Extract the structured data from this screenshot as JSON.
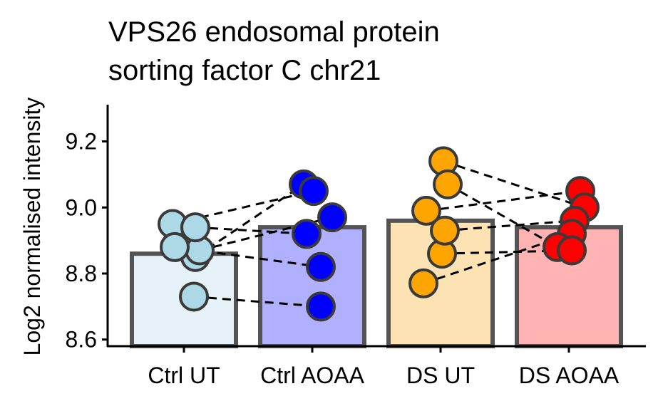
{
  "chart_data": {
    "type": "bar",
    "title_lines": [
      "VPS26 endosomal protein",
      "sorting factor C chr21"
    ],
    "xlabel": "",
    "ylabel": "Log2 normalised intensity",
    "categories": [
      "Ctrl UT",
      "Ctrl AOAA",
      "DS UT",
      "DS AOAA"
    ],
    "values": [
      8.86,
      8.94,
      8.96,
      8.94
    ],
    "ylim": [
      8.58,
      9.35
    ],
    "yticks": [
      8.6,
      8.8,
      9.0,
      9.2
    ],
    "ytick_labels": [
      "8.6",
      "8.8",
      "9.0",
      "9.2"
    ],
    "grid": false,
    "legend": "none",
    "bar_fill_colors": [
      "#e6f2f8",
      "#b0b0ff",
      "#fde3b3",
      "#ffb3b3"
    ],
    "bar_edge_color": "#545454",
    "point_colors": [
      "#add8e6",
      "#0000ff",
      "#ffa500",
      "#ff0000"
    ],
    "point_edge_color": "#3a3a3a",
    "points": [
      [
        8.95,
        8.85,
        8.87,
        8.94,
        8.88,
        8.73
      ],
      [
        9.07,
        9.05,
        8.97,
        8.92,
        8.82,
        8.7
      ],
      [
        9.14,
        9.07,
        8.99,
        8.86,
        8.77,
        8.93
      ],
      [
        9.05,
        9.0,
        8.96,
        8.92,
        8.88,
        8.87
      ]
    ],
    "pairs_ctrl": [
      [
        8.95,
        9.05
      ],
      [
        8.85,
        9.07
      ],
      [
        8.87,
        8.97
      ],
      [
        8.94,
        8.92
      ],
      [
        8.88,
        8.82
      ],
      [
        8.73,
        8.7
      ]
    ],
    "pairs_ds": [
      [
        9.14,
        9.0
      ],
      [
        9.07,
        8.88
      ],
      [
        8.99,
        9.05
      ],
      [
        8.86,
        8.87
      ],
      [
        8.77,
        8.92
      ],
      [
        8.93,
        8.96
      ]
    ]
  }
}
